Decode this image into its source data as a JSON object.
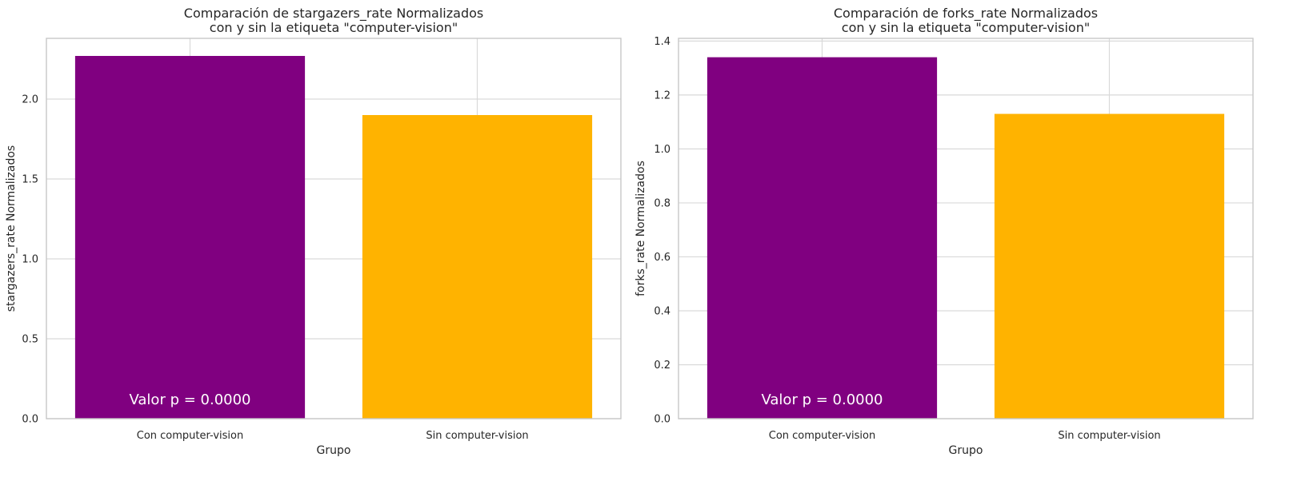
{
  "chart_data": [
    {
      "type": "bar",
      "title_lines": [
        "Comparación de stargazers_rate Normalizados",
        "con y sin la etiqueta \"computer-vision\""
      ],
      "xlabel": "Grupo",
      "ylabel": "stargazers_rate Normalizados",
      "categories": [
        "Con computer-vision",
        "Sin computer-vision"
      ],
      "values": [
        2.27,
        1.9
      ],
      "colors": [
        "#800080",
        "#FFB300"
      ],
      "ylim": [
        0,
        2.38
      ],
      "yticks": [
        0.0,
        0.5,
        1.0,
        1.5,
        2.0
      ],
      "ytick_labels": [
        "0.0",
        "0.5",
        "1.0",
        "1.5",
        "2.0"
      ],
      "grid": true,
      "annotation": "Valor p = 0.0000"
    },
    {
      "type": "bar",
      "title_lines": [
        "Comparación de forks_rate Normalizados",
        "con y sin la etiqueta \"computer-vision\""
      ],
      "xlabel": "Grupo",
      "ylabel": "forks_rate Normalizados",
      "categories": [
        "Con computer-vision",
        "Sin computer-vision"
      ],
      "values": [
        1.34,
        1.13
      ],
      "colors": [
        "#800080",
        "#FFB300"
      ],
      "ylim": [
        0,
        1.41
      ],
      "yticks": [
        0.0,
        0.2,
        0.4,
        0.6,
        0.8,
        1.0,
        1.2,
        1.4
      ],
      "ytick_labels": [
        "0.0",
        "0.2",
        "0.4",
        "0.6",
        "0.8",
        "1.0",
        "1.2",
        "1.4"
      ],
      "grid": true,
      "annotation": "Valor p = 0.0000"
    }
  ]
}
